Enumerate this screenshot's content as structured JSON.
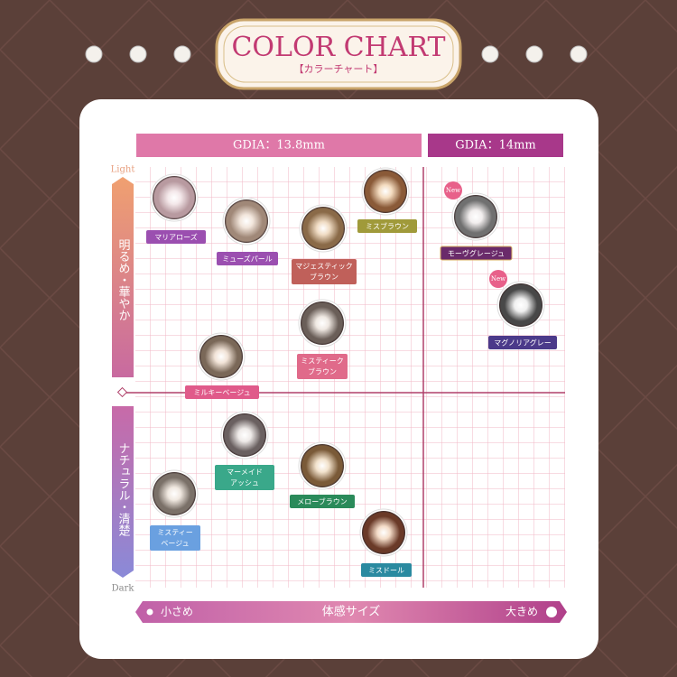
{
  "header": {
    "title": "COLOR CHART",
    "subtitle": "【カラーチャート】"
  },
  "size_groups": [
    "GDIA：13.8mm",
    "GDIA：14mm"
  ],
  "brightness": {
    "light": "Light",
    "dark": "Dark",
    "bright_label": "明るめ・華やか",
    "natural_label": "ナチュラル・清楚"
  },
  "size_axis": {
    "small": "小さめ",
    "label": "体感サイズ",
    "large": "大きめ"
  },
  "lenses": [
    {
      "name": [
        "マリアローズ"
      ]
    },
    {
      "name": [
        "ミューズパール"
      ]
    },
    {
      "name": [
        "マジェスティック",
        "ブラウン"
      ]
    },
    {
      "name": [
        "ミスブラウン"
      ]
    },
    {
      "name": [
        "モーヴグレージュ"
      ],
      "badge": "New"
    },
    {
      "name": [
        "マグノリアグレー"
      ],
      "badge": "New"
    },
    {
      "name": [
        "ミスティーク",
        "ブラウン"
      ]
    },
    {
      "name": [
        "ミルキーベージュ"
      ]
    },
    {
      "name": [
        "マーメイド",
        "アッシュ"
      ]
    },
    {
      "name": [
        "メローブラウン"
      ]
    },
    {
      "name": [
        "ミスティー",
        "ベージュ"
      ]
    },
    {
      "name": [
        "ミスドール"
      ]
    }
  ]
}
